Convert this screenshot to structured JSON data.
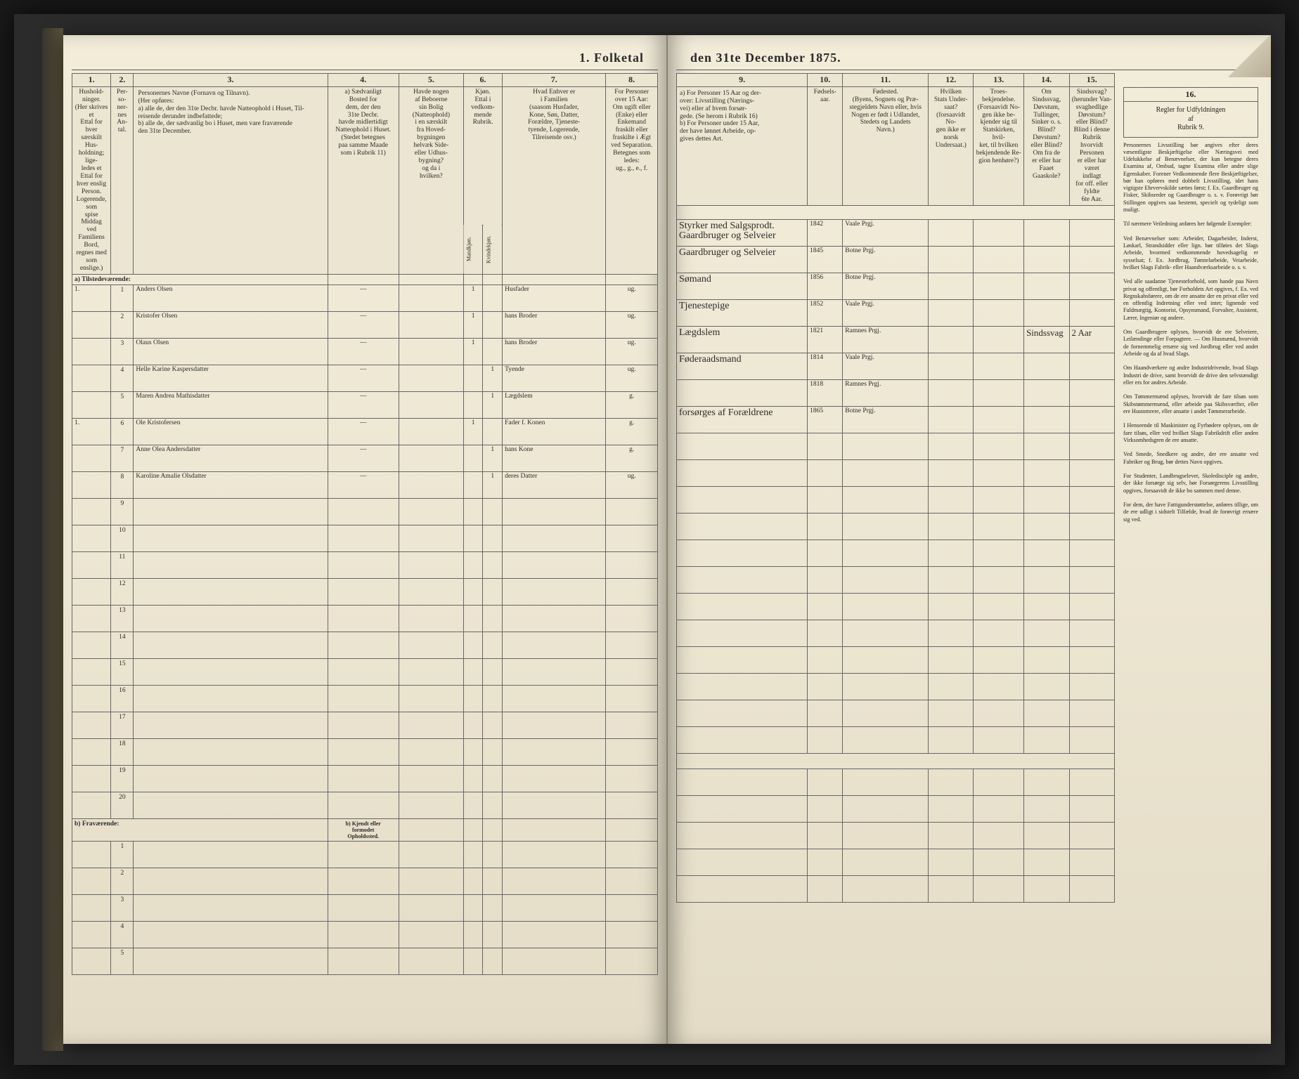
{
  "title_left": "1.  Folketal",
  "title_right": "den 31te December 1875.",
  "left_columns": {
    "nums": [
      "1.",
      "2.",
      "3.",
      "4.",
      "5.",
      "6.",
      "7.",
      "8."
    ],
    "c1": "Hushold-\nninger.\n(Her skrives et\nEttal for hver\nsærskilt Hus-\nholdning; lige-\nledes et Ettal for\nhver enslig\nPerson.\nLogerende, som\nspise Middag\nved Familiens\nBord, regnes med\nsom enslige.)",
    "c2": "Per-\nso-\nner-\nnes\nAn-\ntal.",
    "c3": "Personernes Navne (Fornavn og Tilnavn).\n(Her opføres:\na) alle de, der den 31te Decbr. havde Natteophold i Huset, Til-\nreisende derunder indbefattede;\nb) alle de, der sædvanlig bo i Huset, men vare fraværende\nden 31te December.",
    "c4": "a) Sædvanligt\nBosted for\ndem, der den\n31te Decbr.\nhavde midlertidigt\nNatteophold i Huset.\n(Stedet betegnes\npaa samme Maade\nsom i Rubrik 11)",
    "c5": "Havde nogen\naf Beboerne\nsin Bolig\n(Natteophold)\ni en særskilt\nfra Hoved-\nbygningen\nhelvæk Side-\neller Udhus-\nbygning?\nog da i\nhvilken?",
    "c6": "Kjøn.\nEttal i\nvedkom-\nmende\nRubrik.",
    "c6a": "Mandkjøn.",
    "c6b": "Kvindekjøn.",
    "c7": "Hvad Enhver er\ni Familien\n(saasom Husfader,\nKone, Søn, Datter,\nForældre, Tjeneste-\ntyende, Logerende,\nTilreisende osv.)",
    "c8": "For Personer\nover 15 Aar:\nOm ugift eller\n(Enke) eller\nEnkemand\nfraskilt eller\nfraskilte i Ægt\nved Separation.\nBetegnes som\nledes:\nug., g., e., f."
  },
  "right_columns": {
    "nums": [
      "9.",
      "10.",
      "11.",
      "12.",
      "13.",
      "14.",
      "15.",
      "16."
    ],
    "c9": "a) For Personer 15 Aar og der-\nover: Livsstilling (Nærings-\nvei) eller af hvem forsør-\ngede. (Se herom i Rubrik 16)\nb) For Personer under 15 Aar,\nder have lønnet Arbeide, op-\ngives dettes Art.",
    "c10": "Fødsels-\naar.",
    "c11": "Fødested.\n(Byens, Sognets og Præ-\nstegjeldets Navn eller, hvis\nNogen er født i Udlandet,\nStedets og Landets\nNavn.)",
    "c12": "Hvilken\nStats Under-\nsaat?\n(forsaavidt No-\ngen ikke er\nnorsk\nUndersaat.)",
    "c13": "Troes-\nbekjendelse.\n(Forsaavidt No-\ngen ikke be-\nkjender sig til\nStatskirken, hvil-\nket, til hvilken\nbekjendende Re-\ngion henhøre?)",
    "c14": "Om\nSindssvag,\nDøvstum,\nTullinger,\nSinker o. s.\nBlind?\nDøvstum?\neller Blind?\nOm fra de\ner eller har\nFaaet\nGaaskole?",
    "c15": "Sindssvag?\n(herunder Van-\nsvaghedlige\nDøvstum?\neller Blind?\nBlind i denne\nRubrik\nhvorvidt\nPersonen\ner eller har\nværet\nindlagt\nfor off. eller\nfyldte\n6te Aar.",
    "c16": "Regler for Udfyldningen\naf\nRubrik 9."
  },
  "section_a": "a) Tilstedeværende:",
  "section_b": "b) Fraværende:",
  "b_header": "b) Kjendt eller\nformodet\nOpholdssted.",
  "rows": [
    {
      "hh": "1.",
      "n": "1",
      "name": "Anders Olsen",
      "c4": "—",
      "c5": "",
      "m": "1",
      "k": "",
      "fam": "Husfader",
      "civ": "ug.",
      "occ": "Styrker med Salgsprodt.\nGaardbruger og Selveier",
      "yr": "1842",
      "place": "Vaale Prgj.",
      "c12": "",
      "c13": "",
      "c14": "",
      "c15": ""
    },
    {
      "hh": "",
      "n": "2",
      "name": "Kristofer Olsen",
      "c4": "—",
      "c5": "",
      "m": "1",
      "k": "",
      "fam": "hans Broder",
      "civ": "ug.",
      "occ": "Gaardbruger og Selveier",
      "yr": "1845",
      "place": "Botne Prgj.",
      "c12": "",
      "c13": "",
      "c14": "",
      "c15": ""
    },
    {
      "hh": "",
      "n": "3",
      "name": "Olaus Olsen",
      "c4": "—",
      "c5": "",
      "m": "1",
      "k": "",
      "fam": "hans Broder",
      "civ": "ug.",
      "occ": "Sømand",
      "yr": "1856",
      "place": "Botne Prgj.",
      "c12": "",
      "c13": "",
      "c14": "",
      "c15": ""
    },
    {
      "hh": "",
      "n": "4",
      "name": "Helle Karine Kaspersdatter",
      "c4": "—",
      "c5": "",
      "m": "",
      "k": "1",
      "fam": "Tyende",
      "civ": "ug.",
      "occ": "Tjenestepige",
      "yr": "1852",
      "place": "Vaale Prgj.",
      "c12": "",
      "c13": "",
      "c14": "",
      "c15": ""
    },
    {
      "hh": "",
      "n": "5",
      "name": "Maren Andrea Mathisdatter",
      "c4": "—",
      "c5": "",
      "m": "",
      "k": "1",
      "fam": "Lægdslem",
      "civ": "g.",
      "occ": "Lægdslem",
      "yr": "1821",
      "place": "Ramnes Prgj.",
      "c12": "",
      "c13": "",
      "c14": "Sindssvag",
      "c15": "2 Aar"
    },
    {
      "hh": "1.",
      "n": "6",
      "name": "Ole Kristofersen",
      "c4": "—",
      "c5": "",
      "m": "1",
      "k": "",
      "fam": "Fader f. Konen",
      "civ": "g.",
      "occ": "Føderaadsmand",
      "yr": "1814",
      "place": "Vaale Prgj.",
      "c12": "",
      "c13": "",
      "c14": "",
      "c15": ""
    },
    {
      "hh": "",
      "n": "7",
      "name": "Anne Olea Andersdatter",
      "c4": "—",
      "c5": "",
      "m": "",
      "k": "1",
      "fam": "hans Kone",
      "civ": "g.",
      "occ": "",
      "yr": "1818",
      "place": "Ramnes Prgj.",
      "c12": "",
      "c13": "",
      "c14": "",
      "c15": ""
    },
    {
      "hh": "",
      "n": "8",
      "name": "Karoline Amalie Olsdatter",
      "c4": "—",
      "c5": "",
      "m": "",
      "k": "1",
      "fam": "deres Datter",
      "civ": "ug.",
      "occ": "forsørges af Forældrene",
      "yr": "1865",
      "place": "Botne Prgj.",
      "c12": "",
      "c13": "",
      "c14": "",
      "c15": ""
    }
  ],
  "empty_rows_a": [
    "9",
    "10",
    "11",
    "12",
    "13",
    "14",
    "15",
    "16",
    "17",
    "18",
    "19",
    "20"
  ],
  "empty_rows_b": [
    "1",
    "2",
    "3",
    "4",
    "5"
  ],
  "instructions": {
    "head": "Regler for Udfyldningen\naf\nRubrik 9.",
    "body": "Personernes Livsstilling bør angives efter deres væsentligste Beskjæftigelse eller Næringsvei med Udelukkelse af Benævnelser, der kun betegne deres Examina af, Ombud, tagne Examina eller andre slige Egenskaber. Forener Vedkommende flere Beskjæftigelser, bør han opføres med dobbelt Livsstilling, idet hans vigtigste Ehrvervskilde sættes først; f. Ex. Gaardbruger og Fisker, Skibsreder og Gaardbruger o. s. v. Forøvrigt bør Stillingen opgives saa bestemt, specielt og tydeligt som muligt.\n\nTil nærmere Veiledning anføres her følgende Exempler:\n\nVed Benævnelser som: Arbeider, Dagarbeider, Inderst, Løskarl, Strandsidder eller lign. bør tilføies det Slags Arbeide, hvormed vedkommende hovedsagelig er sysselsat; f. Ex. Jordbrug, Tømtelarbeide, Veiarbeide, hvilket Slags Fabrik- eller Haandværksarbeide o. s. v.\n\nVed alle saadanne Tjenesteforhold, som hande paa Navn privat og offentligt, bør Forholdets Art opgives, f. Ex. ved Regnskabsførere, om de ere ansatte der en privat eller ved en offentlig Indretning eller ved intet; lignende ved Fuldmægtig, Kontorist, Opsynsmand, Forvalter, Assistent, Lærer, Ingeniør og andere.\n\nOm Gaardbrugere oplyses, hvorvidt de ere Selveiere, Leilændinge eller Forpagtere. — Om Husmænd, hvorvidt de fornemmelig ernære sig ved Jordbrug eller ved andet Arbeide og da af hvad Slags.\n\nOm Haandværkere og andre Industridrivende, hvad Slags Industri de drive, samt hvorvidt de drive den selvstændigt eller ers for andres Arbeide.\n\nOm Tømmermænd oplyses, hvorvidt de fare tilsøs som Skibstømmermænd, eller arbeide paa Skibsværfter, eller ere Hustomrere, eller ansatte i andet Tømmerarbeide.\n\nI Henseende til Maskinister og Fyrbødere oplyses, om de fare tilsøs, eller ved hvilket Slags Fabrikdrift eller anden Virksomhedsgren de ere ansatte.\n\nVed Smede, Snedkere og andre, der ere ansatte ved Fabriker og Brug, bør dettes Navn opgives.\n\nFor Studenter, Landbrugselever, Skoledisciple og andre, der ikke forsørge sig selv, bør Forsørgerens Livsstilling opgives, forsaavidt de ikke bo sammen med denne.\n\nFor dem, der have Fattigunderstøttelse, anføres tillige, om de ere udligt i sidstelt Tilfælde, hvad de forøvrigt ernære sig ved."
  },
  "colors": {
    "paper": "#ede6d2",
    "ink": "#2b2b2b",
    "rule": "#666666",
    "hand": "#2a2418"
  },
  "col_widths_left_pct": [
    6,
    3.5,
    30,
    11,
    10,
    3,
    3,
    16,
    8
  ],
  "col_widths_right_pct": [
    26,
    7,
    17,
    9,
    10,
    9,
    9
  ]
}
